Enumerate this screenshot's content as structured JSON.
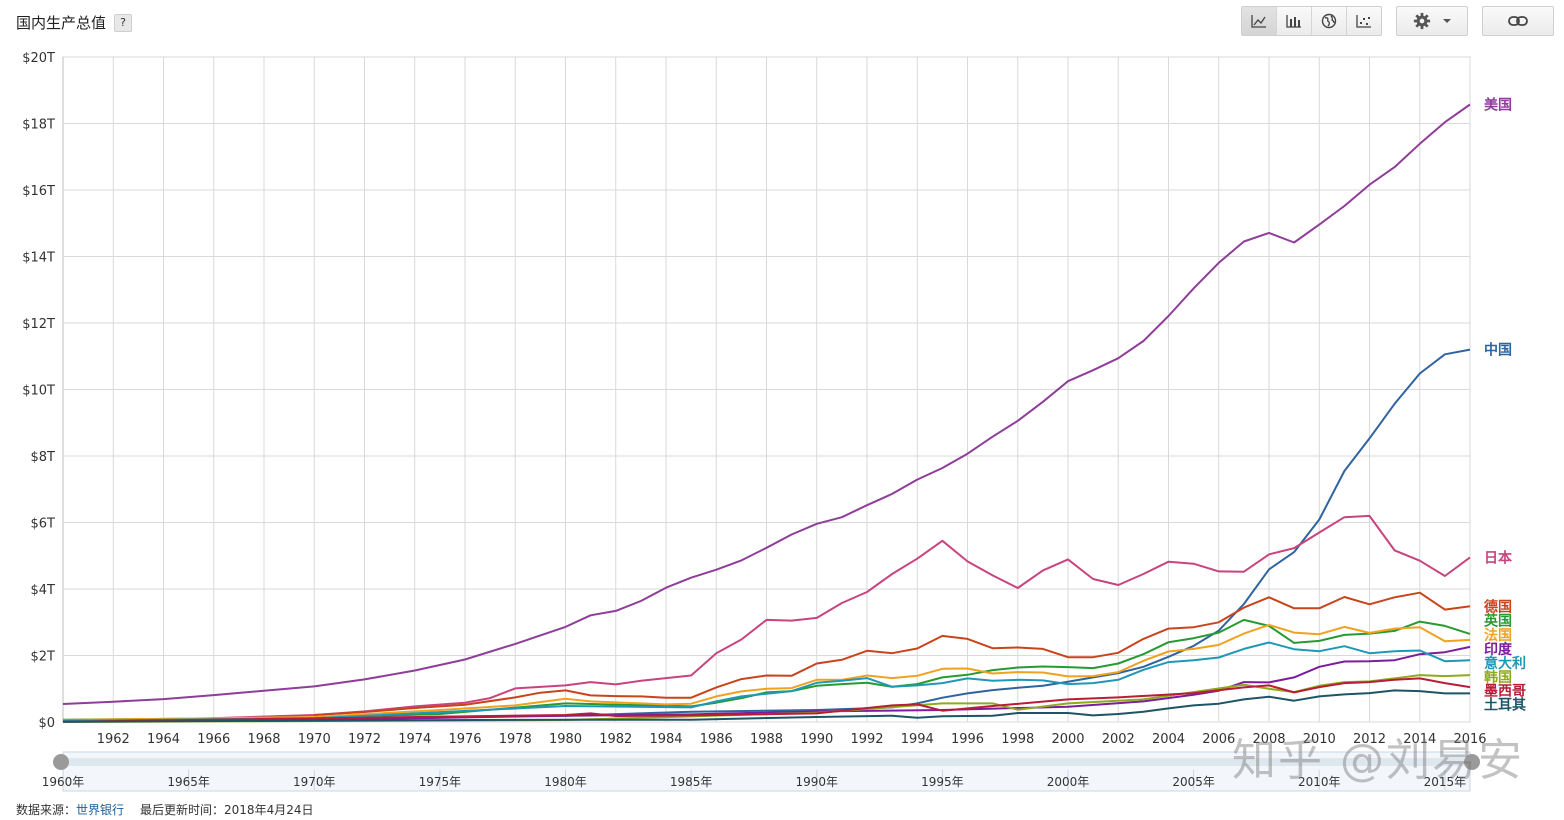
{
  "header": {
    "title": "国内生产总值",
    "help": "?"
  },
  "toolbar": {
    "icons": [
      "line-chart-icon",
      "bar-chart-icon",
      "globe-icon",
      "scatter-icon",
      "gear-icon",
      "chevron-down-icon",
      "link-icon"
    ],
    "active": "line-chart-icon"
  },
  "footer": {
    "source_label": "数据来源：",
    "source_name": "世界银行",
    "updated": "最后更新时间：2018年4月24日"
  },
  "watermark": "知乎 @刘易安",
  "chart_data": {
    "type": "line",
    "ylim": [
      0,
      20
    ],
    "xlim": [
      1960,
      2016
    ],
    "y_ticks": [
      0,
      2,
      4,
      6,
      8,
      10,
      12,
      14,
      16,
      18,
      20
    ],
    "y_tick_labels": [
      "$0",
      "$2T",
      "$4T",
      "$6T",
      "$8T",
      "$10T",
      "$12T",
      "$14T",
      "$16T",
      "$18T",
      "$20T"
    ],
    "x_ticks": [
      1962,
      1964,
      1966,
      1968,
      1970,
      1972,
      1974,
      1976,
      1978,
      1980,
      1982,
      1984,
      1986,
      1988,
      1990,
      1992,
      1994,
      1996,
      1998,
      2000,
      2002,
      2004,
      2006,
      2008,
      2010,
      2012,
      2014,
      2016
    ],
    "slider_ticks": [
      1960,
      1965,
      1970,
      1975,
      1980,
      1985,
      1990,
      1995,
      2000,
      2005,
      2010,
      2015
    ],
    "slider_suffix": "年",
    "grid": true,
    "legend": "right-end-labels",
    "series": [
      {
        "name": "美国",
        "color": "#8e3d99",
        "x": [
          1960,
          1962,
          1964,
          1966,
          1968,
          1970,
          1972,
          1974,
          1976,
          1978,
          1980,
          1981,
          1982,
          1983,
          1984,
          1985,
          1986,
          1987,
          1988,
          1989,
          1990,
          1991,
          1992,
          1993,
          1994,
          1995,
          1996,
          1997,
          1998,
          1999,
          2000,
          2001,
          2002,
          2003,
          2004,
          2005,
          2006,
          2007,
          2008,
          2009,
          2010,
          2011,
          2012,
          2013,
          2014,
          2015,
          2016
        ],
        "values": [
          0.54,
          0.61,
          0.69,
          0.81,
          0.94,
          1.07,
          1.28,
          1.55,
          1.88,
          2.35,
          2.86,
          3.21,
          3.34,
          3.64,
          4.04,
          4.34,
          4.58,
          4.86,
          5.24,
          5.64,
          5.96,
          6.16,
          6.52,
          6.86,
          7.29,
          7.64,
          8.07,
          8.58,
          9.06,
          9.63,
          10.25,
          10.58,
          10.94,
          11.46,
          12.21,
          13.04,
          13.81,
          14.45,
          14.71,
          14.42,
          14.96,
          15.52,
          16.16,
          16.69,
          17.39,
          18.04,
          18.57
        ]
      },
      {
        "name": "中国",
        "color": "#2f64a0",
        "x": [
          1960,
          1970,
          1975,
          1980,
          1985,
          1990,
          1993,
          1994,
          1995,
          1996,
          1997,
          1998,
          1999,
          2000,
          2001,
          2002,
          2003,
          2004,
          2005,
          2006,
          2007,
          2008,
          2009,
          2010,
          2011,
          2012,
          2013,
          2014,
          2015,
          2016
        ],
        "values": [
          0.06,
          0.09,
          0.16,
          0.19,
          0.31,
          0.36,
          0.44,
          0.56,
          0.73,
          0.86,
          0.96,
          1.03,
          1.09,
          1.21,
          1.34,
          1.47,
          1.66,
          1.96,
          2.29,
          2.75,
          3.55,
          4.59,
          5.11,
          6.09,
          7.55,
          8.53,
          9.57,
          10.48,
          11.06,
          11.2
        ]
      },
      {
        "name": "日本",
        "color": "#c8447f",
        "x": [
          1960,
          1965,
          1970,
          1972,
          1974,
          1976,
          1977,
          1978,
          1980,
          1981,
          1982,
          1983,
          1984,
          1985,
          1986,
          1987,
          1988,
          1989,
          1990,
          1991,
          1992,
          1993,
          1994,
          1995,
          1996,
          1997,
          1998,
          1999,
          2000,
          2001,
          2002,
          2003,
          2004,
          2005,
          2006,
          2007,
          2008,
          2009,
          2010,
          2011,
          2012,
          2013,
          2014,
          2015,
          2016
        ],
        "values": [
          0.04,
          0.09,
          0.21,
          0.32,
          0.47,
          0.58,
          0.72,
          1.01,
          1.1,
          1.2,
          1.13,
          1.24,
          1.32,
          1.4,
          2.07,
          2.48,
          3.07,
          3.05,
          3.13,
          3.58,
          3.91,
          4.45,
          4.91,
          5.45,
          4.83,
          4.41,
          4.03,
          4.56,
          4.89,
          4.3,
          4.12,
          4.45,
          4.82,
          4.76,
          4.53,
          4.52,
          5.04,
          5.23,
          5.7,
          6.16,
          6.2,
          5.16,
          4.85,
          4.39,
          4.95
        ]
      },
      {
        "name": "德国",
        "color": "#c9441b",
        "x": [
          1970,
          1972,
          1974,
          1976,
          1978,
          1979,
          1980,
          1981,
          1982,
          1983,
          1984,
          1985,
          1986,
          1987,
          1988,
          1989,
          1990,
          1991,
          1992,
          1993,
          1994,
          1995,
          1996,
          1997,
          1998,
          1999,
          2000,
          2001,
          2002,
          2003,
          2004,
          2005,
          2006,
          2007,
          2008,
          2009,
          2010,
          2011,
          2012,
          2013,
          2014,
          2015,
          2016
        ],
        "values": [
          0.21,
          0.3,
          0.42,
          0.52,
          0.74,
          0.88,
          0.95,
          0.8,
          0.78,
          0.77,
          0.73,
          0.73,
          1.04,
          1.29,
          1.4,
          1.39,
          1.76,
          1.87,
          2.14,
          2.07,
          2.21,
          2.59,
          2.5,
          2.22,
          2.24,
          2.2,
          1.95,
          1.95,
          2.08,
          2.5,
          2.81,
          2.85,
          3.0,
          3.44,
          3.75,
          3.42,
          3.42,
          3.76,
          3.54,
          3.75,
          3.89,
          3.38,
          3.48
        ]
      },
      {
        "name": "英国",
        "color": "#279a31",
        "x": [
          1960,
          1970,
          1975,
          1980,
          1985,
          1986,
          1987,
          1988,
          1989,
          1990,
          1991,
          1992,
          1993,
          1994,
          1995,
          1996,
          1997,
          1998,
          1999,
          2000,
          2001,
          2002,
          2003,
          2004,
          2005,
          2006,
          2007,
          2008,
          2009,
          2010,
          2011,
          2012,
          2013,
          2014,
          2015,
          2016
        ],
        "values": [
          0.07,
          0.13,
          0.24,
          0.56,
          0.47,
          0.58,
          0.72,
          0.89,
          0.93,
          1.09,
          1.14,
          1.18,
          1.06,
          1.14,
          1.34,
          1.42,
          1.56,
          1.64,
          1.67,
          1.65,
          1.62,
          1.76,
          2.04,
          2.4,
          2.52,
          2.69,
          3.07,
          2.89,
          2.38,
          2.44,
          2.62,
          2.66,
          2.74,
          3.02,
          2.89,
          2.65
        ]
      },
      {
        "name": "法国",
        "color": "#f0a21f",
        "x": [
          1960,
          1970,
          1975,
          1978,
          1980,
          1981,
          1982,
          1983,
          1984,
          1985,
          1986,
          1987,
          1988,
          1989,
          1990,
          1991,
          1992,
          1993,
          1994,
          1995,
          1996,
          1997,
          1998,
          1999,
          2000,
          2001,
          2002,
          2003,
          2004,
          2005,
          2006,
          2007,
          2008,
          2009,
          2010,
          2011,
          2012,
          2013,
          2014,
          2015,
          2016
        ],
        "values": [
          0.06,
          0.15,
          0.36,
          0.5,
          0.7,
          0.62,
          0.59,
          0.56,
          0.53,
          0.55,
          0.77,
          0.92,
          1.0,
          1.02,
          1.27,
          1.27,
          1.4,
          1.32,
          1.39,
          1.6,
          1.61,
          1.46,
          1.5,
          1.49,
          1.37,
          1.38,
          1.5,
          1.84,
          2.12,
          2.2,
          2.32,
          2.66,
          2.92,
          2.69,
          2.64,
          2.86,
          2.68,
          2.81,
          2.85,
          2.43,
          2.47
        ]
      },
      {
        "name": "印度",
        "color": "#7c1d9c",
        "x": [
          1960,
          1970,
          1980,
          1985,
          1990,
          1995,
          2000,
          2003,
          2005,
          2006,
          2007,
          2008,
          2009,
          2010,
          2011,
          2012,
          2013,
          2014,
          2015,
          2016
        ],
        "values": [
          0.04,
          0.06,
          0.19,
          0.23,
          0.32,
          0.36,
          0.46,
          0.62,
          0.82,
          0.94,
          1.2,
          1.19,
          1.34,
          1.66,
          1.82,
          1.83,
          1.86,
          2.04,
          2.1,
          2.26
        ]
      },
      {
        "name": "意大利",
        "color": "#1f98b8",
        "x": [
          1960,
          1970,
          1980,
          1985,
          1986,
          1987,
          1988,
          1989,
          1990,
          1991,
          1992,
          1993,
          1994,
          1995,
          1996,
          1997,
          1998,
          1999,
          2000,
          2001,
          2002,
          2003,
          2004,
          2005,
          2006,
          2007,
          2008,
          2009,
          2010,
          2011,
          2012,
          2013,
          2014,
          2015,
          2016
        ],
        "values": [
          0.04,
          0.11,
          0.48,
          0.44,
          0.62,
          0.77,
          0.85,
          0.93,
          1.18,
          1.24,
          1.32,
          1.06,
          1.1,
          1.17,
          1.31,
          1.24,
          1.27,
          1.25,
          1.14,
          1.17,
          1.27,
          1.57,
          1.8,
          1.86,
          1.94,
          2.2,
          2.39,
          2.19,
          2.13,
          2.28,
          2.07,
          2.13,
          2.15,
          1.83,
          1.86
        ]
      },
      {
        "name": "韩国",
        "color": "#8faa1d",
        "x": [
          1960,
          1980,
          1990,
          1995,
          1997,
          1998,
          2000,
          2003,
          2005,
          2007,
          2008,
          2009,
          2010,
          2011,
          2012,
          2013,
          2014,
          2015,
          2016
        ],
        "values": [
          0.0,
          0.06,
          0.28,
          0.56,
          0.56,
          0.37,
          0.56,
          0.68,
          0.9,
          1.12,
          1.0,
          0.9,
          1.09,
          1.2,
          1.22,
          1.31,
          1.41,
          1.38,
          1.41
        ]
      },
      {
        "name": "墨西哥",
        "color": "#b81d38",
        "x": [
          1960,
          1980,
          1981,
          1982,
          1985,
          1990,
          1993,
          1994,
          1995,
          1997,
          2000,
          2002,
          2005,
          2007,
          2008,
          2009,
          2010,
          2011,
          2012,
          2013,
          2014,
          2015,
          2016
        ],
        "values": [
          0.01,
          0.21,
          0.26,
          0.18,
          0.2,
          0.26,
          0.5,
          0.53,
          0.34,
          0.48,
          0.68,
          0.74,
          0.87,
          1.04,
          1.1,
          0.89,
          1.05,
          1.17,
          1.2,
          1.27,
          1.31,
          1.17,
          1.05
        ]
      },
      {
        "name": "土耳其",
        "color": "#1e5566",
        "x": [
          1960,
          1980,
          1985,
          1990,
          1993,
          1994,
          1995,
          1997,
          1998,
          2000,
          2001,
          2002,
          2003,
          2004,
          2005,
          2006,
          2007,
          2008,
          2009,
          2010,
          2011,
          2012,
          2013,
          2014,
          2015,
          2016
        ],
        "values": [
          0.01,
          0.07,
          0.07,
          0.15,
          0.19,
          0.13,
          0.17,
          0.19,
          0.27,
          0.27,
          0.2,
          0.24,
          0.31,
          0.41,
          0.5,
          0.55,
          0.68,
          0.76,
          0.64,
          0.77,
          0.83,
          0.87,
          0.95,
          0.93,
          0.86,
          0.86
        ]
      }
    ],
    "end_labels": [
      {
        "name": "美国",
        "y": 18.57
      },
      {
        "name": "中国",
        "y": 11.2
      },
      {
        "name": "日本",
        "y": 4.95
      },
      {
        "name": "德国",
        "y": 3.48
      },
      {
        "name": "英国",
        "y": 3.05
      },
      {
        "name": "法国",
        "y": 2.62
      },
      {
        "name": "印度",
        "y": 2.2
      },
      {
        "name": "意大利",
        "y": 1.78
      },
      {
        "name": "韩国",
        "y": 1.36
      },
      {
        "name": "墨西哥",
        "y": 0.94
      },
      {
        "name": "土耳其",
        "y": 0.52
      }
    ]
  }
}
